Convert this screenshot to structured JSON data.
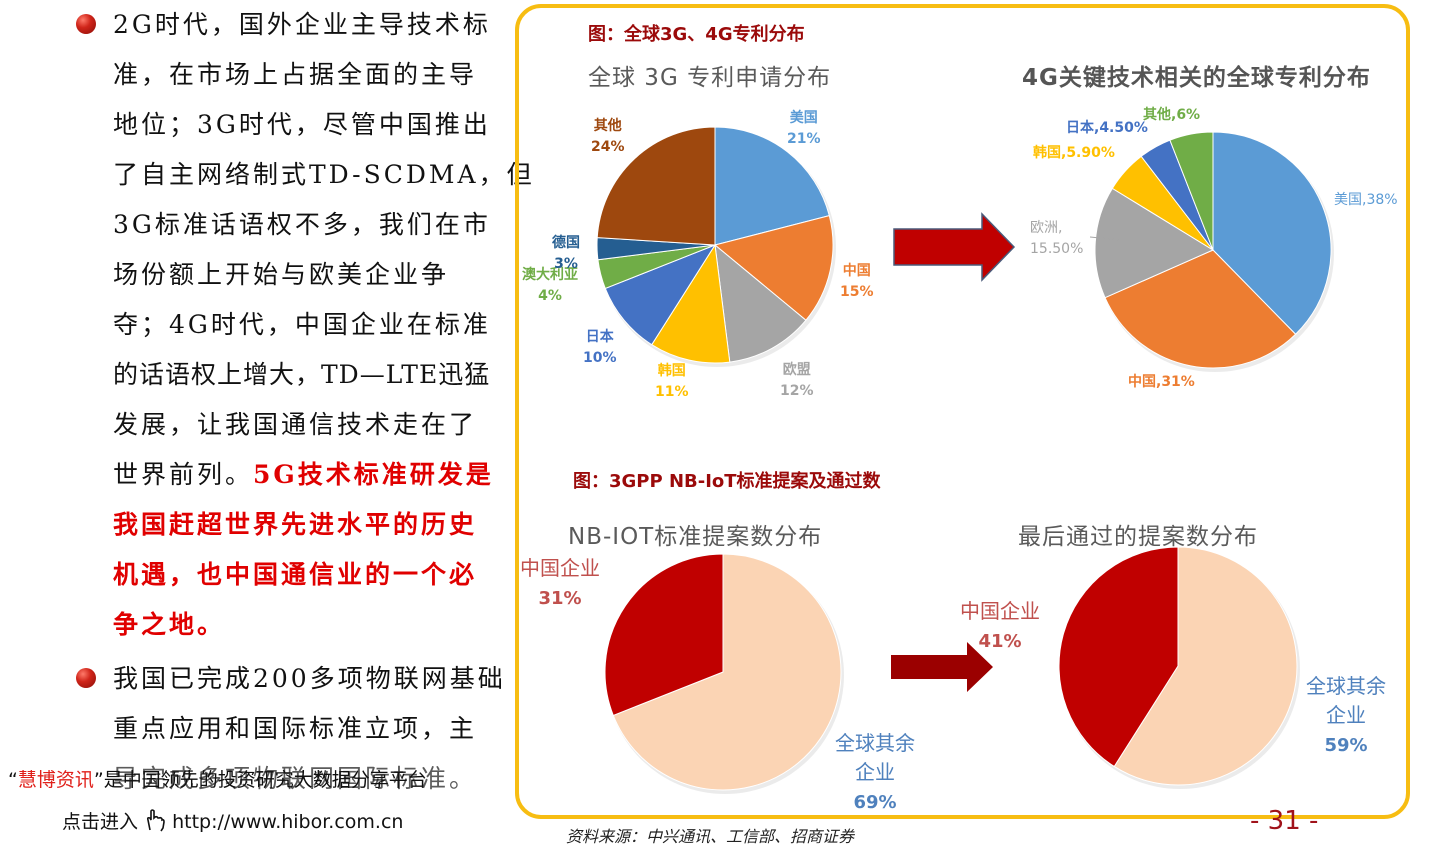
{
  "left_text": {
    "bullet1_lines": [
      "2G时代，国外企业主导技术标",
      "准，在市场上占据全面的主导",
      "地位；3G时代，尽管中国推出",
      "了自主网络制式TD-SCDMA，但",
      "3G标准话语权不多，我们在市",
      "场份额上开始与欧美企业争",
      "夺；4G时代，中国企业在标准",
      "的话语权上增大，TD—LTE迅猛",
      "发展，让我国通信技术走在了"
    ],
    "bullet1_line10_normal": "世界前列。",
    "bullet1_line10_red": "5G技术标准研发是",
    "bullet1_red_lines": [
      "我国赶超世界先进水平的历史",
      "机遇，也中国通信业的一个必",
      "争之地。"
    ],
    "bullet2_lines": [
      "我国已完成200多项物联网基础",
      "重点应用和国际标准立项，主",
      "导完成多项物联网国际标准。"
    ]
  },
  "footer": {
    "brand_quote": "“慧博资讯”是中国领先的投资研究大数据分享平台",
    "brand": "慧博资讯",
    "brand_rest": "是中国领先的投资研究大数据分享平台",
    "click_text": "点击进入",
    "url": "http://www.hibor.com.cn"
  },
  "figure1": {
    "title": "图：全球3G、4G专利分布"
  },
  "figure2": {
    "title": "图：3GPP NB-IoT标准提案及通过数"
  },
  "source": "资料来源：中兴通讯、工信部、招商证券",
  "page_number": "- 31 -",
  "chart_data": [
    {
      "type": "pie",
      "title": "全球 3G 专利申请分布",
      "categories": [
        "美国",
        "中国",
        "欧盟",
        "韩国",
        "日本",
        "澳大利亚",
        "德国",
        "其他"
      ],
      "values": [
        21,
        15,
        12,
        11,
        10,
        4,
        3,
        24
      ],
      "labels": [
        "21%",
        "15%",
        "12%",
        "11%",
        "10%",
        "4%",
        "3%",
        "24%"
      ],
      "colors": [
        "#5b9bd5",
        "#ed7d31",
        "#a5a5a5",
        "#ffc000",
        "#4472c4",
        "#70ad47",
        "#255e91",
        "#9e480e"
      ]
    },
    {
      "type": "pie",
      "title": "4G关键技术相关的全球专利分布",
      "categories": [
        "美国",
        "中国",
        "欧洲",
        "韩国",
        "日本",
        "其他"
      ],
      "values": [
        38,
        31,
        15.5,
        5.9,
        4.5,
        6
      ],
      "labels": [
        "美国,38%",
        "中国,31%",
        "欧洲,15.50%",
        "韩国,5.90%",
        "日本,4.50%",
        "其他,6%"
      ],
      "colors": [
        "#5b9bd5",
        "#ed7d31",
        "#a5a5a5",
        "#ffc000",
        "#4472c4",
        "#70ad47"
      ]
    },
    {
      "type": "pie",
      "title": "NB-IOT标准提案数分布",
      "categories": [
        "全球其余企业",
        "中国企业"
      ],
      "values": [
        69,
        31
      ],
      "labels": [
        "69%",
        "31%"
      ],
      "colors": [
        "#fbd4b4",
        "#c00000"
      ]
    },
    {
      "type": "pie",
      "title": "最后通过的提案数分布",
      "categories": [
        "全球其余企业",
        "中国企业"
      ],
      "values": [
        59,
        41
      ],
      "labels": [
        "59%",
        "41%"
      ],
      "colors": [
        "#fbd4b4",
        "#c00000"
      ]
    }
  ],
  "label_text": {
    "c3g": [
      "美国",
      "中国",
      "欧盟",
      "韩国",
      "日本",
      "澳大利亚",
      "德国",
      "其他"
    ],
    "c3g_pct": [
      "21%",
      "15%",
      "12%",
      "11%",
      "10%",
      "4%",
      "3%",
      "24%"
    ],
    "c4g_us": "美国,38%",
    "c4g_cn": "中国,31%",
    "c4g_eu1": "欧洲,",
    "c4g_eu2": "15.50%",
    "c4g_kr": "韩国,5.90%",
    "c4g_jp": "日本,4.50%",
    "c4g_other": "其他,6%",
    "nb_cn": "中国企业",
    "nb_cn_pct": "31%",
    "nb_rest1": "全球其余",
    "nb_rest2": "企业",
    "nb_rest_pct": "69%",
    "pass_cn": "中国企业",
    "pass_cn_pct": "41%",
    "pass_rest1": "全球其余",
    "pass_rest2": "企业",
    "pass_rest_pct": "59%"
  }
}
